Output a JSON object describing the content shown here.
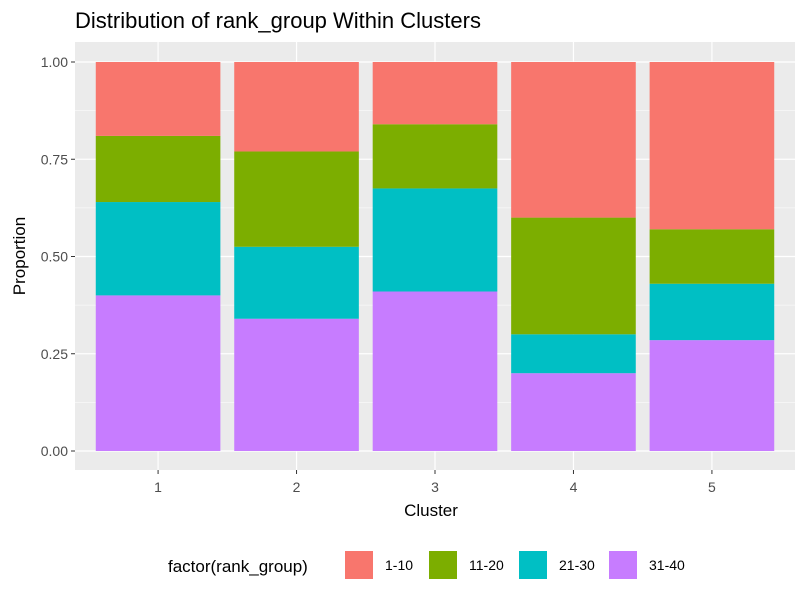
{
  "chart_data": {
    "type": "bar",
    "stacked": "proportion",
    "title": "Distribution of rank_group Within Clusters",
    "xlabel": "Cluster",
    "ylabel": "Proportion",
    "categories": [
      "1",
      "2",
      "3",
      "4",
      "5"
    ],
    "ylim": [
      0,
      1
    ],
    "yticks": [
      "0.00",
      "0.25",
      "0.50",
      "0.75",
      "1.00"
    ],
    "grid": true,
    "legend": {
      "title": "factor(rank_group)",
      "position": "bottom"
    },
    "series": [
      {
        "name": "1-10",
        "color": "#F8766D",
        "values": [
          0.19,
          0.23,
          0.16,
          0.4,
          0.43
        ]
      },
      {
        "name": "11-20",
        "color": "#7CAE00",
        "values": [
          0.17,
          0.245,
          0.165,
          0.3,
          0.14
        ]
      },
      {
        "name": "21-30",
        "color": "#00BFC4",
        "values": [
          0.24,
          0.185,
          0.265,
          0.1,
          0.145
        ]
      },
      {
        "name": "31-40",
        "color": "#C77CFF",
        "values": [
          0.4,
          0.34,
          0.41,
          0.2,
          0.285
        ]
      }
    ],
    "panel_background": "#EBEBEB"
  }
}
